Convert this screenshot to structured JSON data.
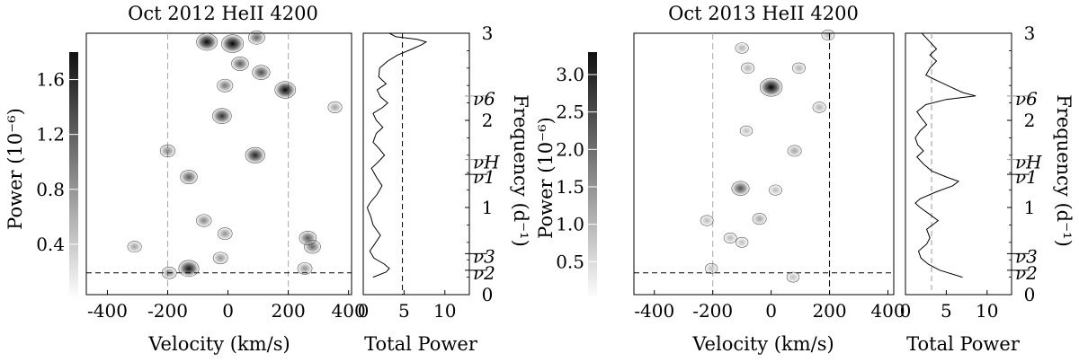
{
  "chart_data": [
    {
      "type": "heatmap",
      "title": "Oct 2012 HeII 4200",
      "xlabel": "Velocity (km/s)",
      "ylabel": "Power (10⁻⁶)",
      "xlim": [
        -470,
        410
      ],
      "ylim": [
        0,
        3
      ],
      "x_ticks": [
        -400,
        -200,
        0,
        200,
        400
      ],
      "x_tick_labels": [
        "-400",
        "-200",
        "0",
        "200",
        "400"
      ],
      "colorbar": {
        "ticks": [
          0.4,
          0.8,
          1.2,
          1.6
        ],
        "tick_labels": [
          "0.4",
          "0.8",
          "1.2",
          "1.6"
        ],
        "range": [
          0,
          1.8
        ]
      },
      "vlines_velocity": [
        -200,
        200
      ],
      "hline_frequency": 0.25,
      "peaks": [
        {
          "v": -70,
          "f": 2.9,
          "p": 1.5
        },
        {
          "v": 15,
          "f": 2.88,
          "p": 1.7
        },
        {
          "v": 95,
          "f": 2.95,
          "p": 0.8
        },
        {
          "v": 40,
          "f": 2.65,
          "p": 0.9
        },
        {
          "v": 110,
          "f": 2.55,
          "p": 1.0
        },
        {
          "v": 190,
          "f": 2.35,
          "p": 1.5
        },
        {
          "v": -10,
          "f": 2.4,
          "p": 0.7
        },
        {
          "v": -20,
          "f": 2.05,
          "p": 1.2
        },
        {
          "v": 355,
          "f": 2.15,
          "p": 0.4
        },
        {
          "v": -200,
          "f": 1.65,
          "p": 0.6
        },
        {
          "v": 90,
          "f": 1.6,
          "p": 1.3
        },
        {
          "v": -130,
          "f": 1.35,
          "p": 0.9
        },
        {
          "v": -80,
          "f": 0.85,
          "p": 0.6
        },
        {
          "v": 265,
          "f": 0.65,
          "p": 0.9
        },
        {
          "v": 280,
          "f": 0.55,
          "p": 0.8
        },
        {
          "v": -310,
          "f": 0.55,
          "p": 0.4
        },
        {
          "v": -10,
          "f": 0.7,
          "p": 0.5
        },
        {
          "v": -25,
          "f": 0.42,
          "p": 0.5
        },
        {
          "v": -130,
          "f": 0.3,
          "p": 1.4
        },
        {
          "v": -195,
          "f": 0.25,
          "p": 0.5
        },
        {
          "v": 255,
          "f": 0.3,
          "p": 0.5
        }
      ],
      "side_panel": {
        "xlabel": "Total Power",
        "ylabel": "Frequency (d⁻¹)",
        "xlim": [
          0,
          13
        ],
        "x_ticks": [
          0,
          5,
          10
        ],
        "x_tick_labels": [
          "0",
          "5",
          "10"
        ],
        "y_ticks": [
          0,
          1,
          2,
          3
        ],
        "y_tick_labels": [
          "0",
          "1",
          "2",
          "3"
        ],
        "vline_total_power": 4.8,
        "frequency_marks": [
          {
            "label": "ν6",
            "f": 2.28,
            "long": true
          },
          {
            "label": "νH",
            "f": 1.55,
            "long": true
          },
          {
            "label": "ν1",
            "f": 1.38,
            "long": false
          },
          {
            "label": "ν3",
            "f": 0.47,
            "long": false
          },
          {
            "label": "ν2",
            "f": 0.28,
            "long": false
          }
        ],
        "series": {
          "f": [
            0.2,
            0.26,
            0.3,
            0.35,
            0.42,
            0.5,
            0.58,
            0.68,
            0.8,
            0.9,
            0.97,
            1.0,
            1.05,
            1.15,
            1.25,
            1.35,
            1.45,
            1.52,
            1.6,
            1.68,
            1.75,
            1.85,
            1.92,
            2.0,
            2.08,
            2.15,
            2.2,
            2.27,
            2.35,
            2.42,
            2.5,
            2.6,
            2.68,
            2.75,
            2.82,
            2.87,
            2.9,
            2.93,
            2.96,
            3.0
          ],
          "power": [
            1.2,
            2.8,
            3.2,
            2.6,
            1.3,
            0.8,
            1.4,
            2.1,
            1.2,
            0.9,
            0.6,
            0.5,
            0.8,
            1.7,
            2.3,
            1.6,
            1.0,
            1.8,
            2.6,
            1.9,
            1.2,
            1.6,
            2.4,
            1.6,
            1.2,
            2.4,
            3.0,
            2.1,
            1.7,
            2.8,
            1.9,
            2.0,
            3.0,
            4.2,
            6.0,
            7.2,
            7.7,
            6.6,
            4.0,
            3.2
          ]
        }
      }
    },
    {
      "type": "heatmap",
      "title": "Oct 2013 HeII 4200",
      "xlabel": "Velocity (km/s)",
      "ylabel": "Power (10⁻⁶)",
      "xlim": [
        -470,
        420
      ],
      "ylim": [
        0,
        3
      ],
      "x_ticks": [
        -400,
        -200,
        0,
        200,
        400
      ],
      "x_tick_labels": [
        "-400",
        "-200",
        "0",
        "200",
        "400"
      ],
      "colorbar": {
        "ticks": [
          0.5,
          1.0,
          1.5,
          2.0,
          2.5,
          3.0
        ],
        "tick_labels": [
          "0.5",
          "1.0",
          "1.5",
          "2.0",
          "2.5",
          "3.0"
        ],
        "range": [
          0,
          3.3
        ]
      },
      "vlines_velocity": [
        -200,
        200
      ],
      "hline_frequency": 0.25,
      "peaks": [
        {
          "v": -100,
          "f": 2.83,
          "p": 0.5
        },
        {
          "v": -80,
          "f": 2.6,
          "p": 0.5
        },
        {
          "v": 95,
          "f": 2.6,
          "p": 0.5
        },
        {
          "v": 195,
          "f": 2.98,
          "p": 0.4
        },
        {
          "v": 0,
          "f": 2.38,
          "p": 3.2
        },
        {
          "v": 165,
          "f": 2.15,
          "p": 0.5
        },
        {
          "v": -85,
          "f": 1.88,
          "p": 0.3
        },
        {
          "v": 80,
          "f": 1.65,
          "p": 0.7
        },
        {
          "v": -105,
          "f": 1.22,
          "p": 1.8
        },
        {
          "v": 15,
          "f": 1.2,
          "p": 0.4
        },
        {
          "v": -40,
          "f": 0.87,
          "p": 0.7
        },
        {
          "v": -220,
          "f": 0.85,
          "p": 0.4
        },
        {
          "v": -140,
          "f": 0.65,
          "p": 0.4
        },
        {
          "v": -100,
          "f": 0.6,
          "p": 0.3
        },
        {
          "v": 75,
          "f": 0.2,
          "p": 0.3
        },
        {
          "v": -205,
          "f": 0.3,
          "p": 0.3
        }
      ],
      "side_panel": {
        "xlabel": "Total Power",
        "ylabel": "Frequency (d⁻¹)",
        "xlim": [
          0,
          13
        ],
        "x_ticks": [
          0,
          5,
          10
        ],
        "x_tick_labels": [
          "0",
          "5",
          "10"
        ],
        "y_ticks": [
          0,
          1,
          2,
          3
        ],
        "y_tick_labels": [
          "0",
          "1",
          "2",
          "3"
        ],
        "vline_total_power": 3.2,
        "frequency_marks": [
          {
            "label": "ν6",
            "f": 2.28,
            "long": true
          },
          {
            "label": "νH",
            "f": 1.55,
            "long": true
          },
          {
            "label": "ν1",
            "f": 1.38,
            "long": false
          },
          {
            "label": "ν3",
            "f": 0.47,
            "long": false
          },
          {
            "label": "ν2",
            "f": 0.28,
            "long": false
          }
        ],
        "series": {
          "f": [
            0.2,
            0.28,
            0.35,
            0.42,
            0.5,
            0.58,
            0.65,
            0.75,
            0.85,
            0.92,
            1.0,
            1.05,
            1.1,
            1.18,
            1.25,
            1.3,
            1.35,
            1.42,
            1.5,
            1.58,
            1.65,
            1.72,
            1.8,
            1.88,
            1.95,
            2.02,
            2.1,
            2.18,
            2.24,
            2.28,
            2.32,
            2.38,
            2.45,
            2.52,
            2.6,
            2.68,
            2.75,
            2.82,
            2.9,
            2.95,
            3.0
          ],
          "power": [
            7.0,
            4.2,
            2.8,
            1.9,
            1.6,
            2.6,
            3.0,
            2.6,
            4.0,
            3.0,
            1.8,
            1.2,
            1.8,
            3.8,
            5.8,
            6.5,
            5.0,
            3.2,
            2.2,
            1.4,
            2.2,
            1.5,
            1.2,
            1.8,
            2.6,
            2.0,
            1.4,
            2.5,
            5.0,
            8.6,
            7.0,
            5.6,
            4.0,
            2.5,
            3.0,
            3.8,
            3.0,
            3.8,
            3.0,
            2.5,
            2.0
          ]
        }
      }
    }
  ]
}
